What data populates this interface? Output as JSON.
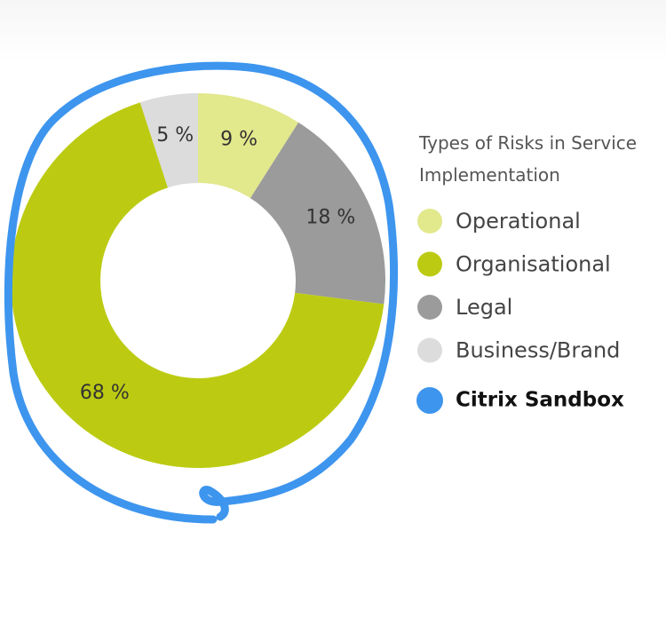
{
  "chart_data": {
    "type": "donut",
    "title": "Types of Risks in Service Implementation",
    "categories": [
      "Operational",
      "Organisational",
      "Legal",
      "Business/Brand"
    ],
    "values": [
      9,
      68,
      18,
      5
    ],
    "value_labels": [
      "9 %",
      "68 %",
      "18 %",
      "5 %"
    ],
    "colors": [
      "#e2e88c",
      "#bccb12",
      "#9b9b9b",
      "#dcdcdc"
    ],
    "annotation": {
      "text": "Citrix Sandbox",
      "color": "#3d95ee"
    }
  }
}
